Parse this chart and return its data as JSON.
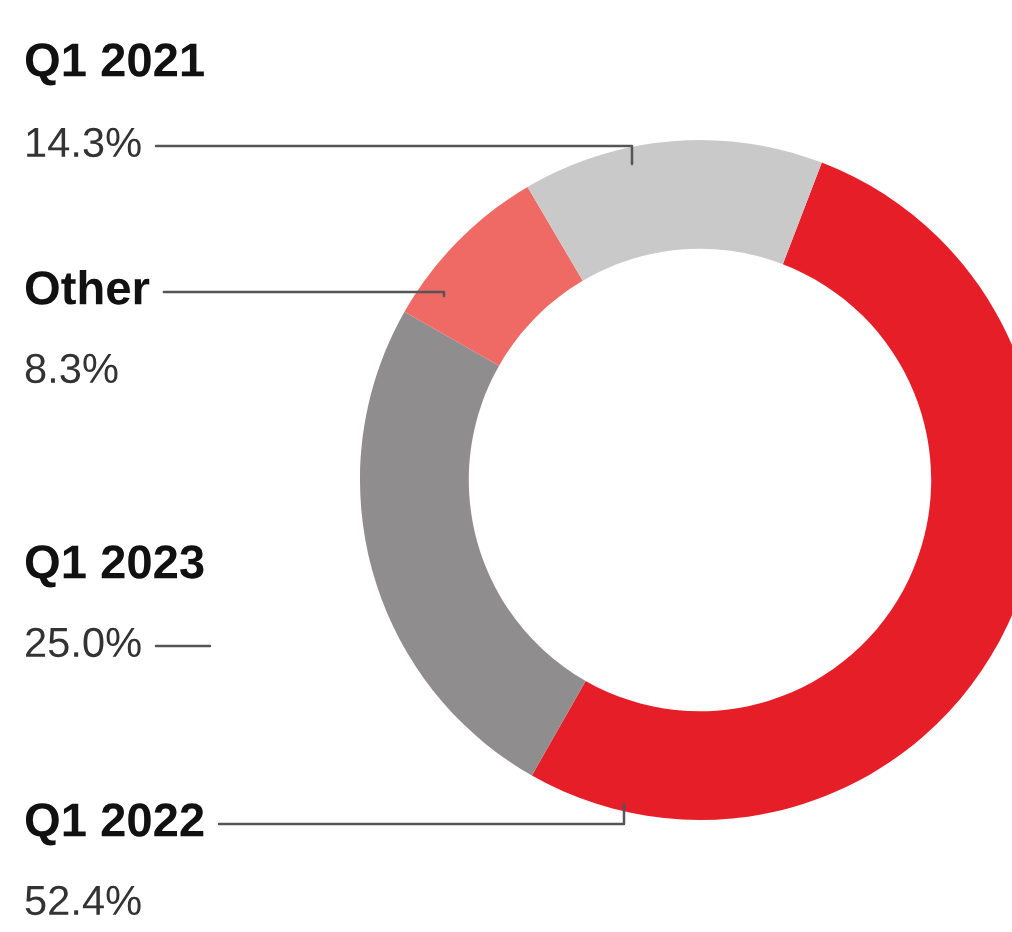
{
  "chart_data": {
    "type": "donut",
    "categories": [
      "Q1 2022",
      "Q1 2023",
      "Other",
      "Q1 2021"
    ],
    "values": [
      52.4,
      25.0,
      8.3,
      14.3
    ],
    "value_labels": [
      "52.4%",
      "25.0%",
      "8.3%",
      "14.3%"
    ],
    "colors": [
      "#e61e28",
      "#8f8d8d",
      "#ef6a64",
      "#c9c9c9"
    ]
  }
}
